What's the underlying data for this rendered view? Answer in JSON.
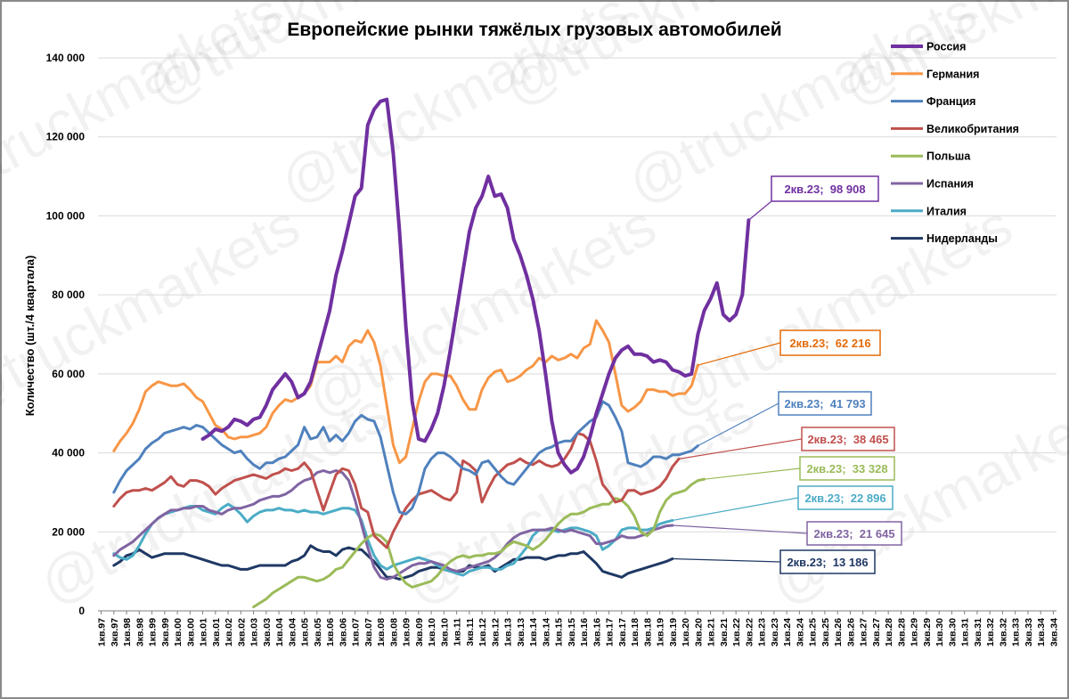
{
  "watermark": "@truckmarkets",
  "chart_data": {
    "type": "line",
    "title": "Европейские рынки тяжёлых грузовых автомобилей",
    "xlabel": "",
    "ylabel": "Количество (шт./4 квартала)",
    "ylim": [
      0,
      140000
    ],
    "yticks": [
      0,
      20000,
      40000,
      60000,
      80000,
      100000,
      120000,
      140000
    ],
    "ytick_labels": [
      "0",
      "20 000",
      "40 000",
      "60 000",
      "80 000",
      "100 000",
      "120 000",
      "140 000"
    ],
    "x_start": "1кв.97",
    "x_end": "3кв.34",
    "x_tick_labels": [
      "1кв.97",
      "3кв.97",
      "1кв.98",
      "3кв.98",
      "1кв.99",
      "3кв.99",
      "1кв.00",
      "3кв.00",
      "1кв.01",
      "3кв.01",
      "1кв.02",
      "3кв.02",
      "1кв.03",
      "3кв.03",
      "1кв.04",
      "3кв.04",
      "1кв.05",
      "3кв.05",
      "1кв.06",
      "3кв.06",
      "1кв.07",
      "3кв.07",
      "1кв.08",
      "3кв.08",
      "1кв.09",
      "3кв.09",
      "1кв.10",
      "3кв.10",
      "1кв.11",
      "3кв.11",
      "1кв.12",
      "3кв.12",
      "1кв.13",
      "3кв.13",
      "1кв.14",
      "3кв.14",
      "1кв.15",
      "3кв.15",
      "1кв.16",
      "3кв.16",
      "1кв.17",
      "3кв.17",
      "1кв.18",
      "3кв.18",
      "1кв.19",
      "3кв.19",
      "1кв.20",
      "3кв.20",
      "1кв.21",
      "3кв.21",
      "1кв.22",
      "3кв.22",
      "1кв.23",
      "3кв.23",
      "1кв.24",
      "3кв.24",
      "1кв.25",
      "3кв.25",
      "1кв.26",
      "3кв.26",
      "1кв.27",
      "3кв.27",
      "1кв.28",
      "3кв.28",
      "1кв.29",
      "3кв.29",
      "1кв.30",
      "3кв.30",
      "1кв.31",
      "3кв.31",
      "1кв.32",
      "3кв.32",
      "1кв.33",
      "3кв.33",
      "1кв.34",
      "3кв.34"
    ],
    "legend_position": "top-right",
    "series": [
      {
        "name": "Россия",
        "color": "#7030A0",
        "width": 4,
        "start_quarter_index": 16,
        "values": [
          43500,
          44500,
          46000,
          45500,
          46500,
          48500,
          48000,
          47000,
          48500,
          49000,
          52000,
          56000,
          58000,
          60000,
          58000,
          54000,
          55000,
          58000,
          64000,
          70000,
          76000,
          85000,
          91000,
          98000,
          105000,
          107000,
          123000,
          127000,
          129000,
          129500,
          116000,
          96000,
          72000,
          53000,
          43500,
          43000,
          46000,
          50000,
          57000,
          66000,
          76000,
          86000,
          96000,
          102000,
          105000,
          110000,
          105000,
          105500,
          102000,
          94000,
          90000,
          85000,
          79000,
          71000,
          60000,
          48000,
          40000,
          37000,
          35000,
          36000,
          39000,
          44000,
          50000,
          55000,
          60000,
          64000,
          66000,
          67000,
          65000,
          65000,
          64500,
          63000,
          63500,
          63000,
          61000,
          60500,
          59500,
          60000,
          70000,
          76000,
          79000,
          83000,
          75000,
          73500,
          75000,
          80000,
          98908
        ],
        "callout": {
          "label": "2кв.23;",
          "value": "98 908",
          "border": "#7030A0",
          "text_color": "#7030A0"
        }
      },
      {
        "name": "Германия",
        "color": "#F79646",
        "width": 3,
        "start_quarter_index": 2,
        "values": [
          40500,
          43000,
          45000,
          47500,
          51000,
          55500,
          57000,
          58000,
          57500,
          57000,
          57000,
          57500,
          56000,
          54000,
          53000,
          50000,
          47000,
          46000,
          44000,
          43500,
          44000,
          44000,
          44500,
          45000,
          46500,
          50000,
          52000,
          53500,
          53000,
          54000,
          55000,
          57000,
          63000,
          63000,
          63000,
          64500,
          63000,
          67000,
          68500,
          68000,
          71000,
          68000,
          62000,
          52000,
          42000,
          37500,
          39000,
          46000,
          53000,
          58000,
          60000,
          60000,
          59500,
          59500,
          57000,
          53500,
          51000,
          51000,
          56000,
          59000,
          60500,
          61000,
          58000,
          58500,
          59500,
          61000,
          62000,
          64000,
          63000,
          64500,
          63500,
          64000,
          65000,
          64000,
          66500,
          67500,
          73500,
          71000,
          68000,
          60000,
          52000,
          50500,
          51500,
          53000,
          56000,
          56000,
          55500,
          55500,
          54500,
          55000,
          55000,
          57000,
          62216
        ],
        "callout": {
          "label": "2кв.23;",
          "value": "62 216",
          "border": "#E36C0A",
          "text_color": "#E36C0A"
        }
      },
      {
        "name": "Франция",
        "color": "#4F81BD",
        "width": 3,
        "start_quarter_index": 2,
        "values": [
          30000,
          33000,
          35500,
          37000,
          38500,
          41000,
          42500,
          43500,
          45000,
          45500,
          46000,
          46500,
          46000,
          47000,
          46500,
          45000,
          43500,
          42000,
          41000,
          40000,
          40500,
          38500,
          37000,
          36000,
          37500,
          37500,
          38500,
          39000,
          40500,
          42000,
          46500,
          43500,
          44000,
          46500,
          43000,
          44500,
          43000,
          45000,
          48000,
          49500,
          48500,
          48000,
          44000,
          37000,
          30000,
          25000,
          24500,
          26000,
          30000,
          36000,
          38500,
          40000,
          40000,
          39000,
          37500,
          36000,
          35500,
          34500,
          37500,
          38000,
          36000,
          34000,
          32500,
          32000,
          34000,
          36000,
          38000,
          40000,
          41000,
          41500,
          42500,
          43000,
          43000,
          45000,
          46500,
          48000,
          49000,
          53000,
          52000,
          49000,
          45500,
          37500,
          37000,
          36500,
          37500,
          39000,
          39000,
          38500,
          39500,
          39500,
          40000,
          40500,
          41793
        ],
        "callout": {
          "label": "2кв.23;",
          "value": "41 793",
          "border": "#4F81BD",
          "text_color": "#4F81BD"
        }
      },
      {
        "name": "Великобритания",
        "color": "#C0504D",
        "width": 3,
        "start_quarter_index": 2,
        "values": [
          26500,
          28500,
          30000,
          30500,
          30500,
          31000,
          30500,
          31500,
          32500,
          34000,
          32000,
          31500,
          33000,
          33000,
          32500,
          31500,
          29500,
          31000,
          32000,
          33000,
          33500,
          34000,
          34500,
          34000,
          33500,
          34500,
          35000,
          36000,
          35500,
          36000,
          37500,
          35500,
          30500,
          25500,
          30000,
          34500,
          36000,
          35500,
          32000,
          26000,
          25000,
          19000,
          17500,
          16000,
          20000,
          23000,
          26000,
          28000,
          29500,
          30000,
          30500,
          29500,
          28500,
          28000,
          30000,
          38000,
          37000,
          35500,
          27500,
          31000,
          34000,
          35500,
          37000,
          37500,
          38500,
          37500,
          37000,
          38000,
          37000,
          36500,
          37000,
          38500,
          41000,
          45000,
          44500,
          43000,
          38000,
          32000,
          30000,
          27500,
          28000,
          30500,
          30500,
          29500,
          30000,
          30500,
          31500,
          33500,
          36500,
          38465
        ],
        "callout": {
          "label": "2кв.23;",
          "value": "38 465",
          "border": "#C0504D",
          "text_color": "#C0504D"
        }
      },
      {
        "name": "Польша",
        "color": "#9BBB59",
        "width": 3,
        "start_quarter_index": 24,
        "values": [
          1000,
          2000,
          3000,
          4500,
          5500,
          6500,
          7500,
          8500,
          8500,
          8000,
          7500,
          8000,
          9000,
          10500,
          11000,
          13000,
          15000,
          17000,
          18500,
          19500,
          19000,
          17500,
          12000,
          9000,
          7000,
          6000,
          6500,
          7000,
          7500,
          9000,
          11000,
          12500,
          13500,
          14000,
          13500,
          14000,
          14000,
          14500,
          14500,
          15000,
          16500,
          17500,
          17000,
          16500,
          15500,
          16500,
          18000,
          20000,
          22000,
          23500,
          24500,
          24500,
          25000,
          26000,
          26500,
          27000,
          27000,
          28500,
          28000,
          26500,
          24000,
          20000,
          19000,
          20500,
          25000,
          28000,
          29500,
          30000,
          30500,
          32000,
          33000,
          33328
        ],
        "callout": {
          "label": "2кв.23;",
          "value": "33 328",
          "border": "#9BBB59",
          "text_color": "#9BBB59"
        }
      },
      {
        "name": "Испания",
        "color": "#8064A2",
        "width": 3,
        "start_quarter_index": 2,
        "values": [
          14000,
          15500,
          16500,
          17500,
          19000,
          20500,
          22000,
          23500,
          24500,
          25500,
          25500,
          26000,
          26000,
          26500,
          26500,
          25500,
          25000,
          24500,
          25500,
          26000,
          26000,
          26500,
          27000,
          28000,
          28500,
          29000,
          29000,
          29500,
          30500,
          32000,
          33000,
          33500,
          35000,
          35500,
          35000,
          35500,
          35000,
          33000,
          28000,
          22000,
          16000,
          11000,
          8500,
          8000,
          8500,
          9500,
          10500,
          11500,
          12000,
          12000,
          12500,
          12000,
          11500,
          10500,
          10000,
          10500,
          11000,
          11500,
          12000,
          12500,
          13500,
          15000,
          17000,
          18500,
          19500,
          20000,
          20500,
          20500,
          20500,
          21000,
          20500,
          20000,
          20500,
          20000,
          19500,
          19000,
          17000,
          17000,
          17500,
          18000,
          19000,
          18500,
          18500,
          19000,
          19500,
          20500,
          21000,
          21500,
          21645
        ],
        "callout": {
          "label": "2кв.23;",
          "value": "21 645",
          "border": "#8064A2",
          "text_color": "#8064A2"
        }
      },
      {
        "name": "Италия",
        "color": "#4BACC6",
        "width": 3,
        "start_quarter_index": 2,
        "values": [
          14500,
          13500,
          13000,
          14000,
          16500,
          19500,
          22000,
          23500,
          24500,
          25000,
          25500,
          26000,
          26500,
          26500,
          25500,
          25000,
          24500,
          26000,
          27000,
          26000,
          24500,
          22500,
          24000,
          25000,
          25500,
          25500,
          26000,
          25500,
          25500,
          25000,
          25500,
          25000,
          25000,
          24500,
          25000,
          25500,
          26000,
          26000,
          25500,
          23000,
          18000,
          14000,
          11500,
          10500,
          11500,
          12000,
          12500,
          13000,
          13500,
          13000,
          12500,
          11500,
          10500,
          10000,
          9500,
          9000,
          10000,
          10500,
          11000,
          11000,
          10500,
          10500,
          11500,
          12000,
          14000,
          16000,
          19000,
          20500,
          20500,
          20500,
          20000,
          20500,
          21000,
          21000,
          20500,
          20000,
          19000,
          15500,
          16500,
          18000,
          20500,
          21000,
          21000,
          20500,
          20500,
          21000,
          22000,
          22500,
          22896
        ],
        "callout": {
          "label": "2кв.23;",
          "value": "22 896",
          "border": "#4BACC6",
          "text_color": "#4BACC6"
        }
      },
      {
        "name": "Нидерланды",
        "color": "#1F3864",
        "width": 3,
        "start_quarter_index": 2,
        "values": [
          11500,
          12500,
          14000,
          14500,
          15500,
          14500,
          13500,
          14000,
          14500,
          14500,
          14500,
          14500,
          14000,
          13500,
          13000,
          12500,
          12000,
          11500,
          11500,
          11000,
          10500,
          10500,
          11000,
          11500,
          11500,
          11500,
          11500,
          11500,
          12500,
          13000,
          14000,
          16500,
          15500,
          15000,
          15000,
          14000,
          15500,
          16000,
          15500,
          15500,
          14000,
          12500,
          10500,
          8500,
          8500,
          8000,
          8500,
          9000,
          10000,
          10500,
          11000,
          11000,
          10500,
          10000,
          10000,
          10000,
          11500,
          11000,
          11000,
          11500,
          10000,
          11000,
          12000,
          13000,
          13000,
          13500,
          13500,
          13500,
          13000,
          13500,
          14000,
          14000,
          14500,
          14500,
          15000,
          13500,
          12000,
          10000,
          9500,
          9000,
          8500,
          9500,
          10000,
          10500,
          11000,
          11500,
          12000,
          12500,
          13186
        ],
        "callout": {
          "label": "2кв.23;",
          "value": "13 186",
          "border": "#1F3864",
          "text_color": "#1F3864"
        }
      }
    ]
  }
}
